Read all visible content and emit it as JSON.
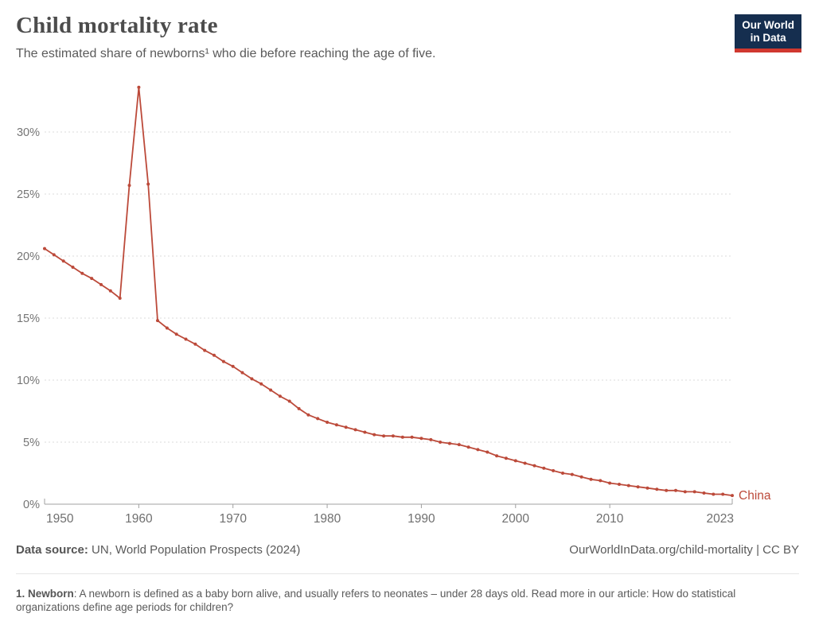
{
  "header": {
    "title": "Child mortality rate",
    "subtitle": "The estimated share of newborns¹ who die before reaching the age of five.",
    "logo_line1": "Our World",
    "logo_line2": "in Data"
  },
  "chart_data": {
    "type": "line",
    "title": "Child mortality rate",
    "xlabel": "",
    "ylabel": "",
    "xlim": [
      1950,
      2023
    ],
    "ylim": [
      0,
      35
    ],
    "x_ticks": [
      1950,
      1960,
      1970,
      1980,
      1990,
      2000,
      2010,
      2023
    ],
    "y_ticks": [
      0,
      5,
      10,
      15,
      20,
      25,
      30
    ],
    "y_tick_suffix": "%",
    "grid": "horizontal-dashed",
    "legend_position": "end-of-line-label",
    "series": [
      {
        "name": "China",
        "end_label": "China",
        "color": "#bc4a3a",
        "x": [
          1950,
          1951,
          1952,
          1953,
          1954,
          1955,
          1956,
          1957,
          1958,
          1959,
          1960,
          1961,
          1962,
          1963,
          1964,
          1965,
          1966,
          1967,
          1968,
          1969,
          1970,
          1971,
          1972,
          1973,
          1974,
          1975,
          1976,
          1977,
          1978,
          1979,
          1980,
          1981,
          1982,
          1983,
          1984,
          1985,
          1986,
          1987,
          1988,
          1989,
          1990,
          1991,
          1992,
          1993,
          1994,
          1995,
          1996,
          1997,
          1998,
          1999,
          2000,
          2001,
          2002,
          2003,
          2004,
          2005,
          2006,
          2007,
          2008,
          2009,
          2010,
          2011,
          2012,
          2013,
          2014,
          2015,
          2016,
          2017,
          2018,
          2019,
          2020,
          2021,
          2022,
          2023
        ],
        "values": [
          20.6,
          20.1,
          19.6,
          19.1,
          18.6,
          18.2,
          17.7,
          17.2,
          16.6,
          25.7,
          33.6,
          25.8,
          14.8,
          14.2,
          13.7,
          13.3,
          12.9,
          12.4,
          12.0,
          11.5,
          11.1,
          10.6,
          10.1,
          9.7,
          9.2,
          8.7,
          8.3,
          7.7,
          7.2,
          6.9,
          6.6,
          6.4,
          6.2,
          6.0,
          5.8,
          5.6,
          5.5,
          5.5,
          5.4,
          5.4,
          5.3,
          5.2,
          5.0,
          4.9,
          4.8,
          4.6,
          4.4,
          4.2,
          3.9,
          3.7,
          3.5,
          3.3,
          3.1,
          2.9,
          2.7,
          2.5,
          2.4,
          2.2,
          2.0,
          1.9,
          1.7,
          1.6,
          1.5,
          1.4,
          1.3,
          1.2,
          1.1,
          1.1,
          1.0,
          1.0,
          0.9,
          0.8,
          0.8,
          0.7
        ]
      }
    ]
  },
  "footer": {
    "datasource_label": "Data source:",
    "datasource_value": " UN, World Population Prospects (2024)",
    "attribution": "OurWorldInData.org/child-mortality | CC BY"
  },
  "footnote": {
    "marker": "1. Newborn",
    "text": ": A newborn is defined as a baby born alive, and usually refers to neonates – under 28 days old. Read more in our article: How do statistical organizations define age periods for children?"
  },
  "colors": {
    "series_line": "#bc4a3a",
    "logo_background": "#152e4f",
    "logo_bar": "#d0382f",
    "gridline": "#dbdbdb",
    "axis_line": "#a0a0a0",
    "tick_text": "#6f6f6f",
    "title_text": "#4c4c4c",
    "body_text": "#5a5a5a"
  }
}
